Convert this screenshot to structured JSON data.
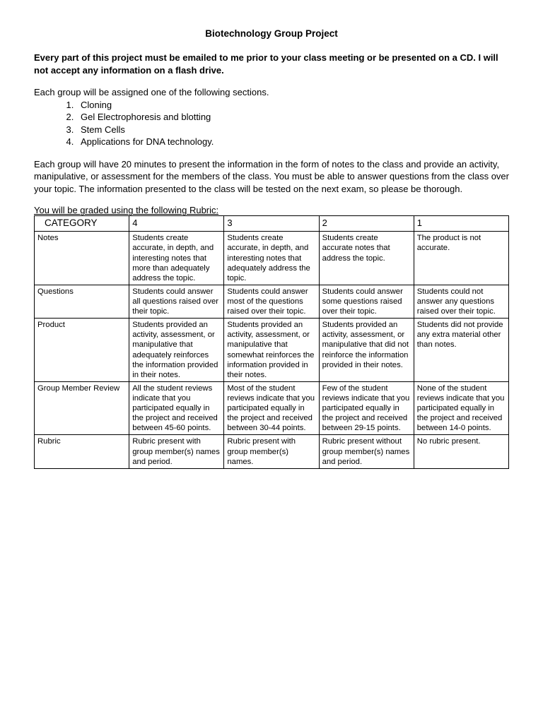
{
  "title": "Biotechnology Group Project",
  "intro_bold": "Every part of this project must be emailed to me prior to your class meeting or be presented on a CD.  I will not accept any information on a flash drive.",
  "assign_lead": "Each group will be assigned one of the following sections.",
  "topics": [
    "Cloning",
    "Gel Electrophoresis and blotting",
    "Stem Cells",
    "Applications for DNA technology."
  ],
  "present_para": "Each group will have 20 minutes to present the information in the form of notes to the class and provide an activity, manipulative, or assessment for the members of the class.  You must be able to answer questions from the class over your topic.  The information presented to the class will be tested on the next exam, so please be thorough.",
  "rubric_label": "You will be graded using the following Rubric:",
  "rubric": {
    "header": {
      "cat": "CATEGORY",
      "c4": "4",
      "c3": "3",
      "c2": "2",
      "c1": "1"
    },
    "rows": [
      {
        "cat": "Notes",
        "c4": "Students create accurate, in depth, and interesting notes that more than adequately address the topic.",
        "c3": "Students create accurate, in depth, and interesting notes that adequately address the topic.",
        "c2": "Students create accurate notes that address the topic.",
        "c1": "The product is not accurate."
      },
      {
        "cat": "Questions",
        "c4": "Students could answer all questions raised over their topic.",
        "c3": "Students could answer most of the questions raised over their topic.",
        "c2": "Students could answer some questions raised over their topic.",
        "c1": "Students could not answer any questions raised over their topic."
      },
      {
        "cat": "Product",
        "c4": "Students provided an activity, assessment, or manipulative that adequately reinforces the information provided in their notes.",
        "c3": "Students provided an activity, assessment, or manipulative that somewhat reinforces the information provided in their notes.",
        "c2": "Students provided an activity, assessment, or manipulative that did not reinforce the information provided in their notes.",
        "c1": "Students did not provide any extra material other than notes."
      },
      {
        "cat": "Group Member Review",
        "c4": "All the student reviews indicate that you participated equally in the project and received between 45-60 points.",
        "c3": "Most of the student reviews indicate that you participated equally in the project and received between 30-44 points.",
        "c2": "Few of the student reviews indicate that you participated equally in the project and received between 29-15 points.",
        "c1": "None of the student reviews indicate that you participated equally in the project and received between 14-0 points."
      },
      {
        "cat": "Rubric",
        "c4": "Rubric present with group member(s) names and period.",
        "c3": "Rubric present with group member(s) names.",
        "c2": "Rubric present without group member(s) names and period.",
        "c1": "No rubric present."
      }
    ]
  }
}
